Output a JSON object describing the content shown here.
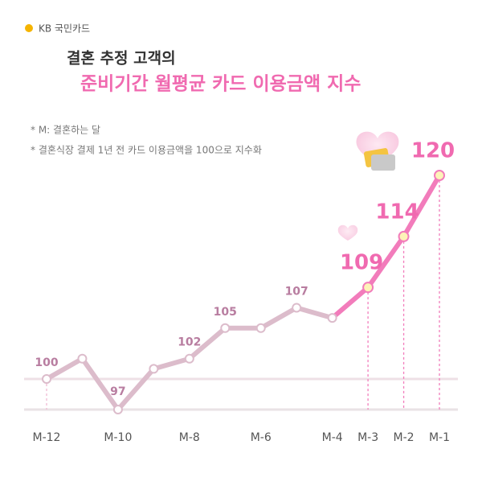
{
  "brand": "KB 국민카드",
  "chart_data": {
    "type": "line",
    "title": "결혼 추정 고객의",
    "subtitle": "준비기간 월평균 카드 이용금액 지수",
    "notes": [
      "* M: 결혼하는 달",
      "* 결혼식장 결제 1년 전 카드 이용금액을 100으로 지수화"
    ],
    "categories": [
      "M-12",
      null,
      "M-10",
      null,
      "M-8",
      null,
      "M-6",
      null,
      "M-4",
      "M-3",
      "M-2",
      "M-1"
    ],
    "values": [
      100,
      102,
      97,
      101,
      102,
      105,
      105,
      107,
      106,
      109,
      114,
      120
    ],
    "value_labels": [
      "100",
      null,
      "97",
      null,
      "102",
      "105",
      null,
      "107",
      null,
      "109",
      "114",
      "120"
    ],
    "color": "#dcbccb",
    "highlight_color": "#f27cbb"
  }
}
